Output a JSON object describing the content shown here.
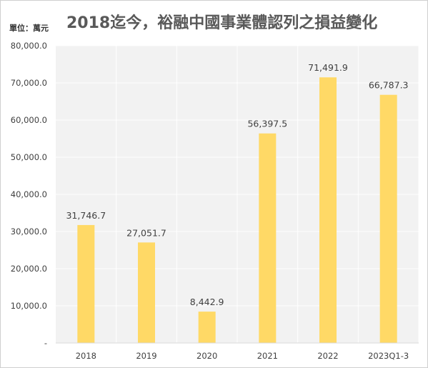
{
  "unit_label": "單位：萬元",
  "chart_data": {
    "type": "bar",
    "title": "2018迄今，裕融中國事業體認列之損益變化",
    "categories": [
      "2018",
      "2019",
      "2020",
      "2021",
      "2022",
      "2023Q1-3"
    ],
    "values": [
      31746.7,
      27051.7,
      8442.9,
      56397.5,
      71491.9,
      66787.3
    ],
    "data_labels": [
      "31,746.7",
      "27,051.7",
      "8,442.9",
      "56,397.5",
      "71,491.9",
      "66,787.3"
    ],
    "y_ticks": [
      "-",
      "10,000.0",
      "20,000.0",
      "30,000.0",
      "40,000.0",
      "50,000.0",
      "60,000.0",
      "70,000.0",
      "80,000.0"
    ],
    "ylim": [
      0,
      80000
    ],
    "xlabel": "",
    "ylabel": "",
    "grid": true,
    "bar_color": "#FFD966",
    "plot_background": "#F2F2F2",
    "grid_color": "#FFFFFF"
  }
}
